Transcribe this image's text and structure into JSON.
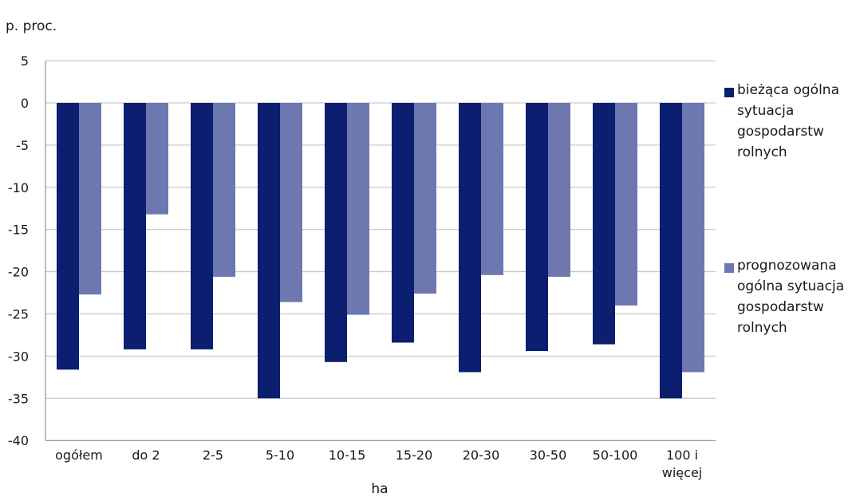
{
  "chart_data": {
    "type": "bar",
    "unit_label": "p. proc.",
    "xlabel": "ha",
    "ylabel": "",
    "ylim": [
      -40,
      5
    ],
    "yticks": [
      5,
      0,
      -5,
      -10,
      -15,
      -20,
      -25,
      -30,
      -35,
      -40
    ],
    "grid": true,
    "legend_position": "right",
    "categories": [
      "ogółem",
      "do 2",
      "2-5",
      "5-10",
      "10-15",
      "15-20",
      "20-30",
      "30-50",
      "50-100",
      "100 i więcej"
    ],
    "series": [
      {
        "name": "bieżąca ogólna sytuacja gospodarstw rolnych",
        "color": "#0b1e6f",
        "values": [
          -31.6,
          -29.2,
          -29.2,
          -35.0,
          -30.7,
          -28.4,
          -31.9,
          -29.4,
          -28.6,
          -35.0
        ]
      },
      {
        "name": "prognozowana ogólna sytuacja gospodarstw rolnych",
        "color": "#6e78b0",
        "values": [
          -22.7,
          -13.2,
          -20.6,
          -23.6,
          -25.1,
          -22.6,
          -20.4,
          -20.6,
          -24.0,
          -31.9
        ]
      }
    ]
  }
}
